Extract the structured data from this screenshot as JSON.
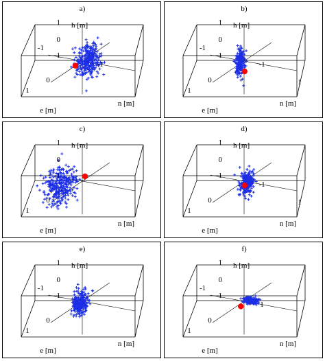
{
  "figure": {
    "axis_labels": {
      "h": "h [m]",
      "e": "e [m]",
      "n": "n [m]"
    },
    "colors": {
      "points": "#1c2ee6",
      "reference": "#ff0000",
      "axes": "#000000"
    }
  },
  "chart_data": [
    {
      "type": "scatter",
      "label": "a)",
      "marker": "+",
      "projection": "3d",
      "axes": {
        "h": [
          -1,
          1
        ],
        "e": [
          -1,
          1
        ],
        "n": [
          -1,
          1
        ]
      },
      "ticks": {
        "h": [
          "1",
          "0",
          "-1"
        ],
        "e": [
          "1",
          "0"
        ],
        "n": [
          "-1"
        ]
      },
      "extra_ticks": [
        "-1"
      ],
      "cloud": {
        "center": {
          "e": 0.1,
          "n": 0.25,
          "h": 0.15
        },
        "spread": {
          "e": 0.3,
          "n": 0.25,
          "h": 0.45
        },
        "count": 300
      },
      "reference_point": {
        "e": 0.25,
        "n": 0.0,
        "h": 0.0
      }
    },
    {
      "type": "scatter",
      "label": "b)",
      "marker": "+",
      "projection": "3d",
      "axes": {
        "h": [
          -1,
          1
        ],
        "e": [
          -1,
          1
        ],
        "n": [
          -1,
          1
        ]
      },
      "ticks": {
        "h": [
          "1",
          "0",
          "-1"
        ],
        "e": [
          "1",
          "0"
        ],
        "n": [
          "-1",
          "1"
        ]
      },
      "extra_ticks": [
        "-1"
      ],
      "cloud": {
        "center": {
          "e": 0.15,
          "n": 0.0,
          "h": 0.05
        },
        "spread": {
          "e": 0.12,
          "n": 0.08,
          "h": 0.45
        },
        "count": 220
      },
      "reference_point": {
        "e": 0.05,
        "n": 0.05,
        "h": -0.3
      }
    },
    {
      "type": "scatter",
      "label": "c)",
      "marker": "+",
      "projection": "3d",
      "axes": {
        "h": [
          -1,
          1
        ],
        "e": [
          -1,
          1
        ],
        "n": [
          -1,
          1
        ]
      },
      "ticks": {
        "h": [
          "1",
          "0",
          "-1"
        ],
        "e": [
          "1",
          "0"
        ],
        "n": []
      },
      "extra_ticks": [],
      "cloud": {
        "center": {
          "e": 0.3,
          "n": -0.35,
          "h": -0.05
        },
        "spread": {
          "e": 0.45,
          "n": 0.3,
          "h": 0.55
        },
        "count": 320
      },
      "reference_point": {
        "e": -0.1,
        "n": 0.0,
        "h": 0.1
      }
    },
    {
      "type": "scatter",
      "label": "d)",
      "marker": "+",
      "projection": "3d",
      "axes": {
        "h": [
          -1,
          1
        ],
        "e": [
          -1,
          1
        ],
        "n": [
          -1,
          1
        ]
      },
      "ticks": {
        "h": [
          "1",
          "0",
          "-1"
        ],
        "e": [
          "1",
          "0"
        ],
        "n": [
          "-1",
          "1"
        ]
      },
      "extra_ticks": [],
      "cloud": {
        "center": {
          "e": 0.05,
          "n": 0.1,
          "h": 0.0
        },
        "spread": {
          "e": 0.2,
          "n": 0.15,
          "h": 0.4
        },
        "count": 240
      },
      "reference_point": {
        "e": 0.05,
        "n": 0.05,
        "h": -0.1
      }
    },
    {
      "type": "scatter",
      "label": "e)",
      "marker": "+",
      "projection": "3d",
      "axes": {
        "h": [
          -1,
          1
        ],
        "e": [
          -1,
          1
        ],
        "n": [
          -1,
          1
        ]
      },
      "ticks": {
        "h": [
          "1",
          "0",
          "-1"
        ],
        "e": [
          "1",
          "0"
        ],
        "n": []
      },
      "extra_ticks": [
        "-1"
      ],
      "cloud": {
        "center": {
          "e": 0.15,
          "n": 0.05,
          "h": 0.05
        },
        "spread": {
          "e": 0.2,
          "n": 0.15,
          "h": 0.35
        },
        "count": 240
      },
      "reference_point": null
    },
    {
      "type": "scatter",
      "label": "f)",
      "marker": "+",
      "projection": "3d",
      "axes": {
        "h": [
          -1,
          1
        ],
        "e": [
          -1,
          1
        ],
        "n": [
          -1,
          1
        ]
      },
      "ticks": {
        "h": [
          "1",
          "0",
          "-1"
        ],
        "e": [
          "1",
          "0"
        ],
        "n": [
          "1"
        ]
      },
      "extra_ticks": [
        "-1"
      ],
      "cloud": {
        "center": {
          "e": 0.05,
          "n": 0.2,
          "h": 0.1
        },
        "spread": {
          "e": 0.06,
          "n": 0.2,
          "h": 0.1
        },
        "count": 160
      },
      "reference_point": {
        "e": 0.05,
        "n": -0.05,
        "h": -0.15
      }
    }
  ]
}
